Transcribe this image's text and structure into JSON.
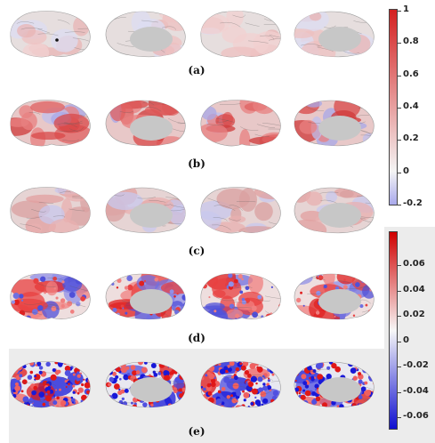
{
  "panels": [
    {
      "label": "(a)",
      "scheme": "a"
    },
    {
      "label": "(b)",
      "scheme": "b"
    },
    {
      "label": "(c)",
      "scheme": "c"
    },
    {
      "label": "(d)",
      "scheme": "d"
    },
    {
      "label": "(e)",
      "scheme": "e"
    }
  ],
  "colorbar_top": {
    "ticks": [
      "1",
      "0.8",
      "0.6",
      "0.4",
      "0.2",
      "0",
      "-0.2"
    ],
    "colors": {
      "max": "#d42020",
      "zero": "#f4f4f4",
      "min": "#a9a9ec"
    }
  },
  "colorbar_bottom": {
    "ticks": [
      "0.06",
      "0.04",
      "0.02",
      "0",
      "-0.02",
      "-0.04",
      "-0.06"
    ],
    "colors": {
      "max": "#d00000",
      "zero": "#f7f7f7",
      "min": "#1010d0"
    }
  },
  "brain_colors": {
    "surface": "#d9d9d9",
    "medial_wall": "#c7c7c7",
    "sulcus": "#5a5a5a"
  }
}
